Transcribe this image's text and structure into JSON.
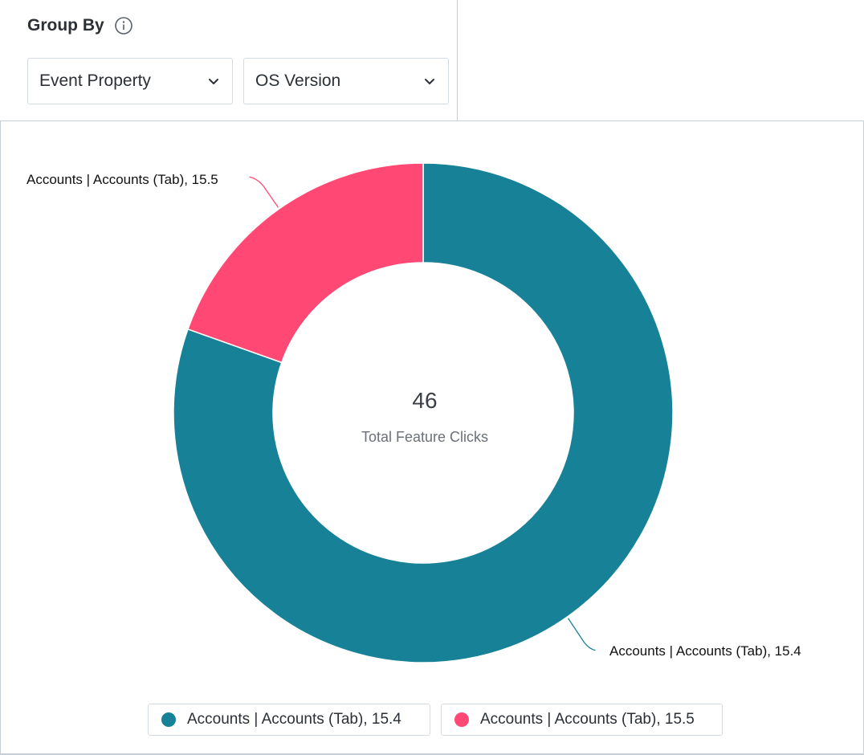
{
  "group_by": {
    "title": "Group By",
    "info_icon": "info-circle-icon",
    "selects": [
      {
        "value": "Event Property",
        "icon": "chevron-down-icon"
      },
      {
        "value": "OS Version",
        "icon": "chevron-down-icon"
      }
    ]
  },
  "chart_data": {
    "type": "pie",
    "variant": "donut",
    "center_value": "46",
    "center_label": "Total Feature Clicks",
    "total": 46,
    "slices": [
      {
        "label": "Accounts | Accounts (Tab), 15.4",
        "value": 37,
        "color": "#178297"
      },
      {
        "label": "Accounts | Accounts (Tab), 15.5",
        "value": 9,
        "color": "#ff4873"
      }
    ],
    "legend": {
      "placement": "bottom",
      "items": [
        {
          "label": "Accounts | Accounts (Tab), 15.4",
          "color": "#178297"
        },
        {
          "label": "Accounts | Accounts (Tab), 15.5",
          "color": "#ff4873"
        }
      ]
    }
  }
}
